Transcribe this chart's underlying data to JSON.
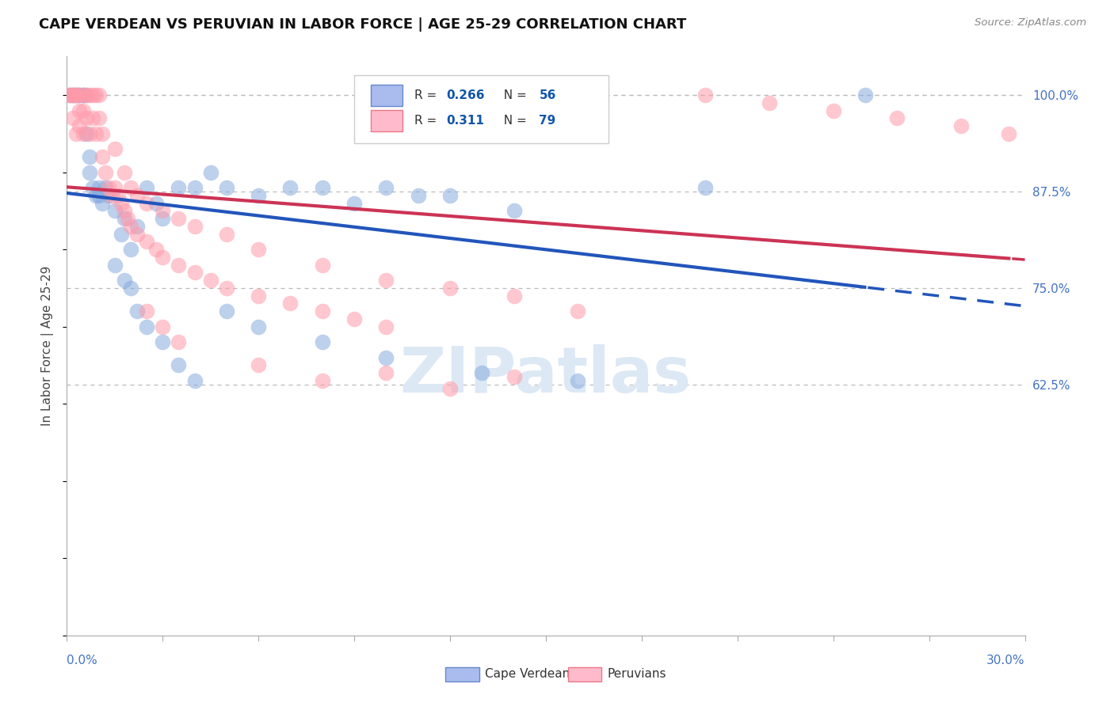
{
  "title": "CAPE VERDEAN VS PERUVIAN IN LABOR FORCE | AGE 25-29 CORRELATION CHART",
  "source": "Source: ZipAtlas.com",
  "ylabel": "In Labor Force | Age 25-29",
  "ylabel_right_labels": [
    "100.0%",
    "87.5%",
    "75.0%",
    "62.5%"
  ],
  "ylabel_right_values": [
    1.0,
    0.875,
    0.75,
    0.625
  ],
  "legend_blue_R": "0.266",
  "legend_blue_N": "56",
  "legend_pink_R": "0.311",
  "legend_pink_N": "79",
  "blue_line_color": "#2255BB",
  "pink_line_color": "#CC3355",
  "blue_scatter_color": "#88AADD",
  "pink_scatter_color": "#FF9AAA",
  "blue_legend_face": "#AABBEE",
  "pink_legend_face": "#FFBBCC",
  "xmin": 0.0,
  "xmax": 0.3,
  "ymin": 0.3,
  "ymax": 1.05,
  "grid_color": "#BBBBBB",
  "background_color": "#FFFFFF",
  "text_color_blue": "#4472C4",
  "legend_text_color": "#1155AA",
  "watermark_color": "#DDE8F5"
}
